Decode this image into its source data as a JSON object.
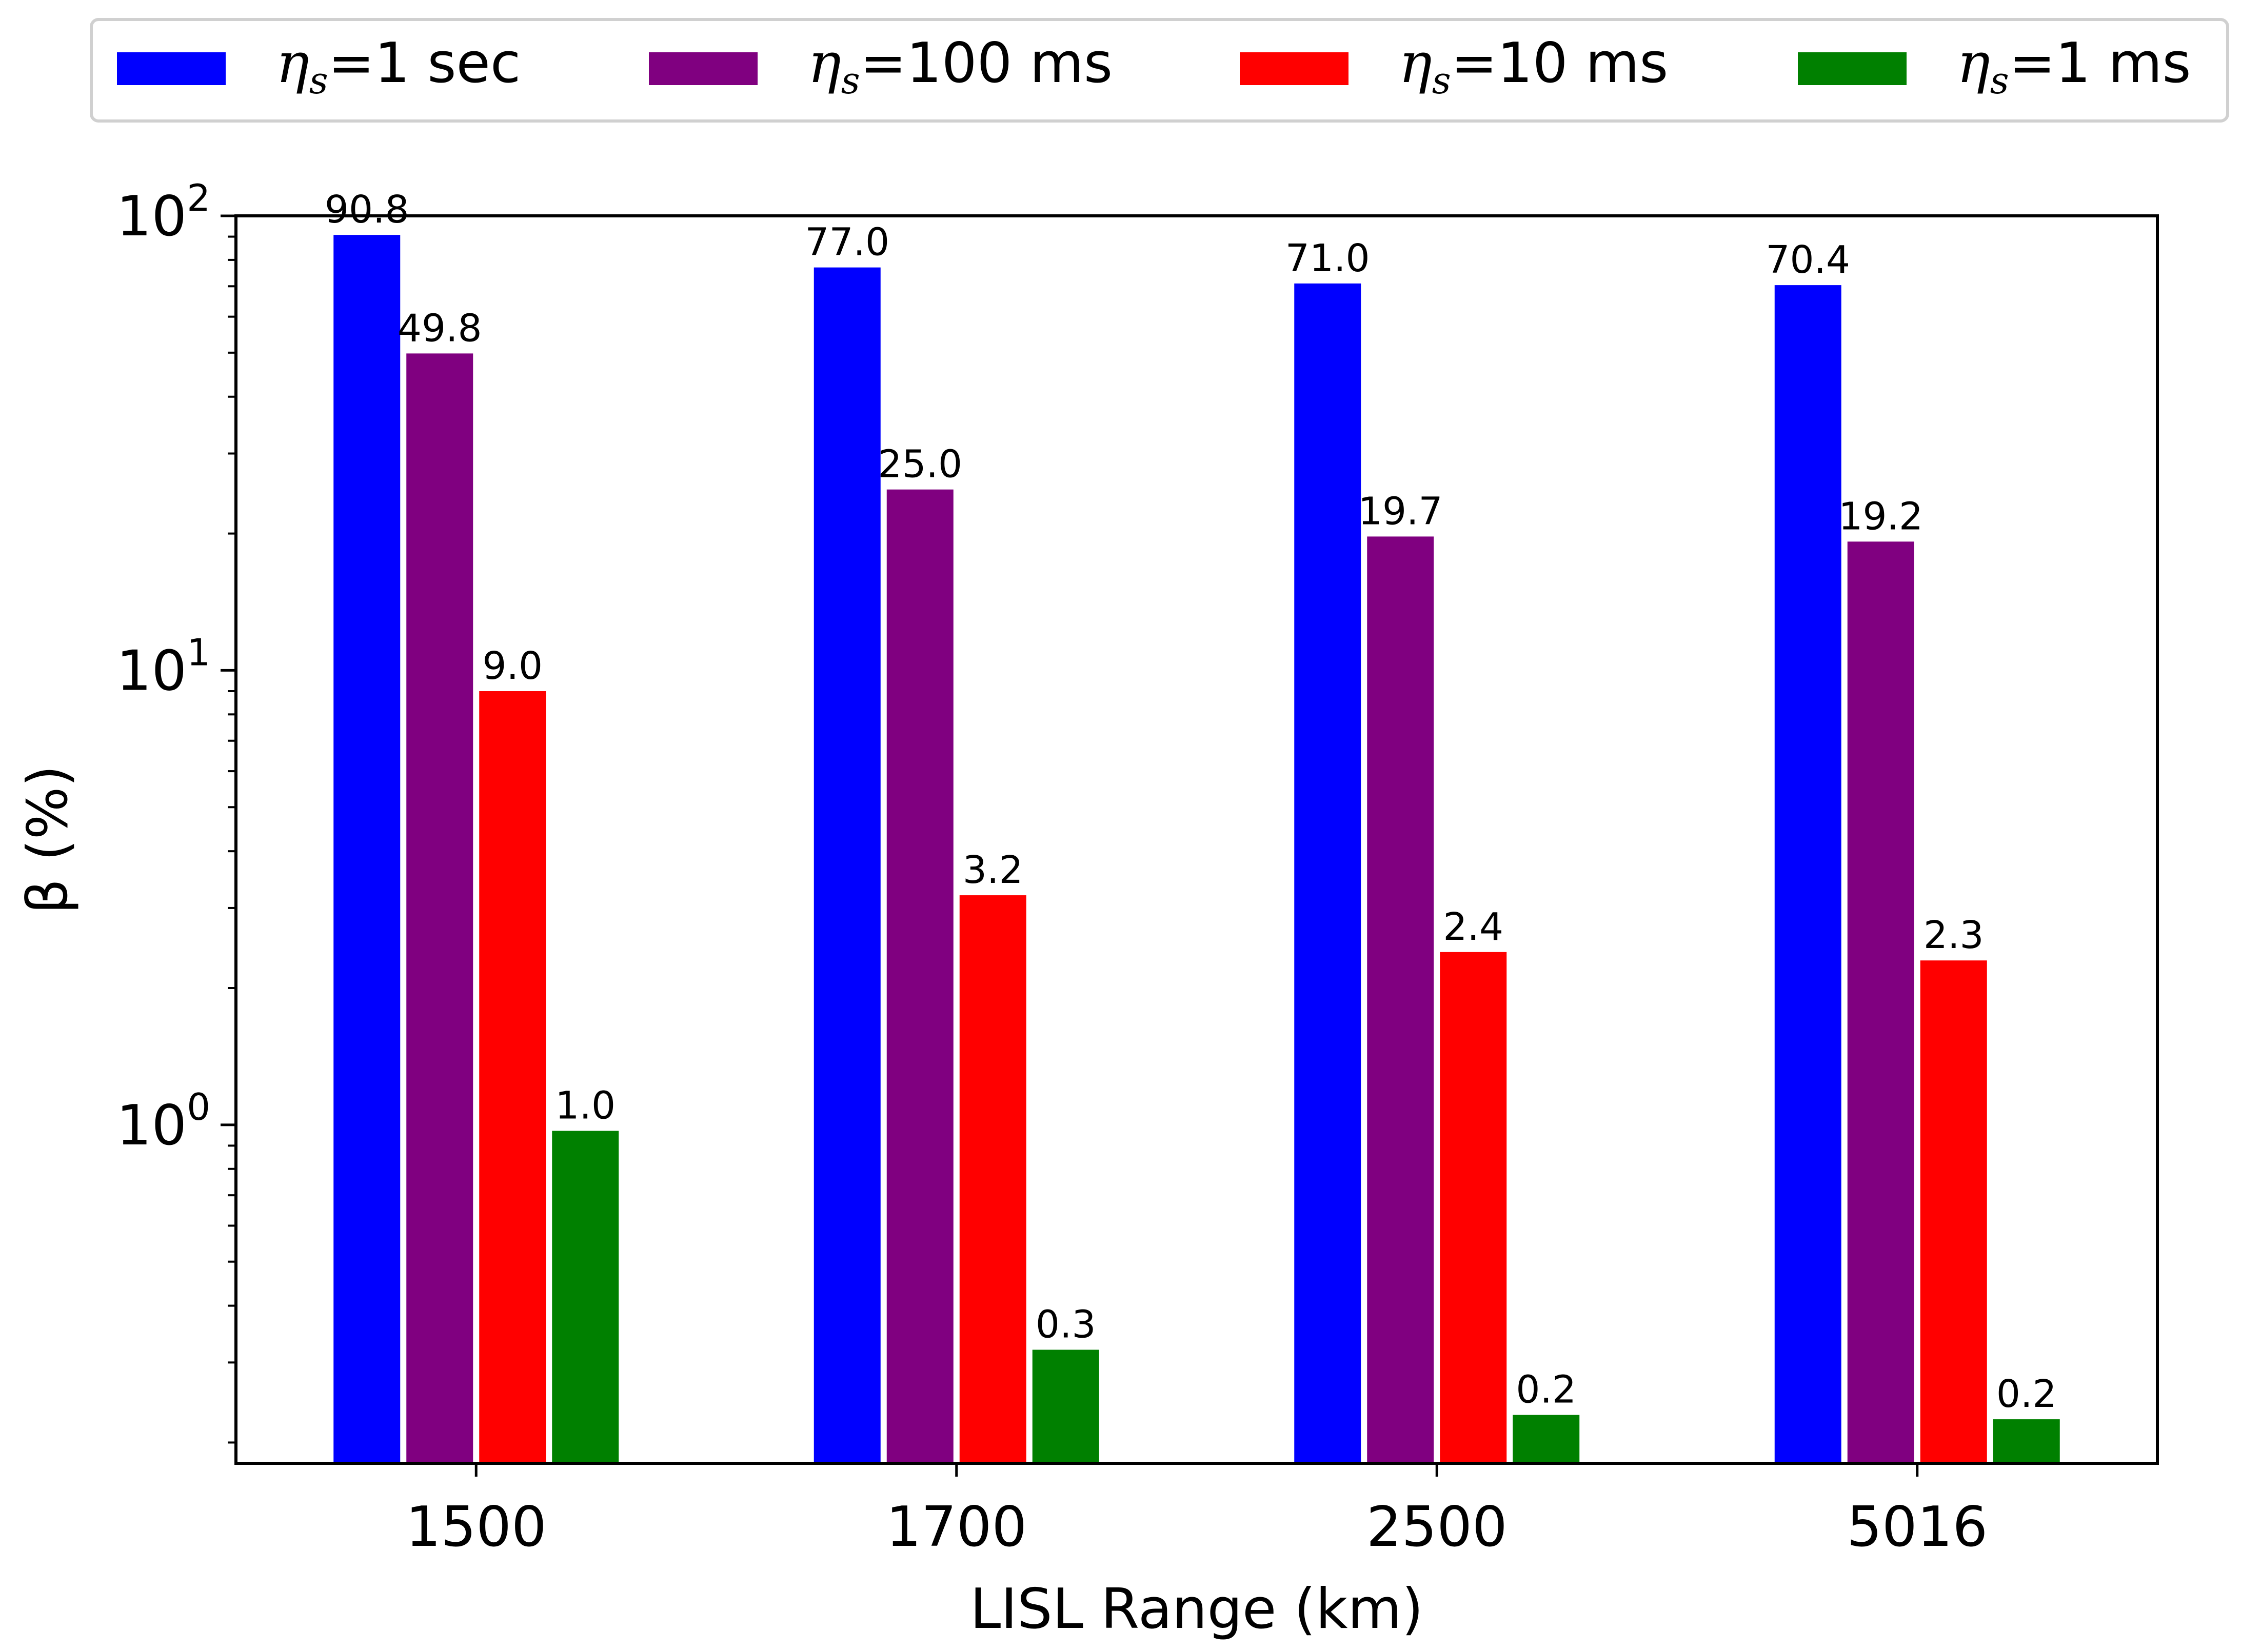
{
  "chart_data": {
    "type": "bar",
    "log_scale_y": true,
    "categories": [
      "1500",
      "1700",
      "2500",
      "5016"
    ],
    "xlabel": "LISL Range (km)",
    "ylabel": "β (%)",
    "ylim": [
      0.18,
      100
    ],
    "y_ticks": [
      {
        "value": 1,
        "base": "10",
        "exp": "0"
      },
      {
        "value": 10,
        "base": "10",
        "exp": "1"
      },
      {
        "value": 100,
        "base": "10",
        "exp": "2"
      }
    ],
    "legend_position": "top, outside plot",
    "grid": false,
    "series": [
      {
        "name": "ηs=1 sec",
        "sym": "η",
        "sub": "s",
        "rest": "=1 sec",
        "color": "#0000ff",
        "values": [
          90.8,
          77.0,
          71.0,
          70.4
        ],
        "labels": [
          "90.8",
          "77.0",
          "71.0",
          "70.4"
        ]
      },
      {
        "name": "ηs=100 ms",
        "sym": "η",
        "sub": "s",
        "rest": "=100 ms",
        "color": "#800080",
        "values": [
          49.8,
          25.0,
          19.7,
          19.2
        ],
        "labels": [
          "49.8",
          "25.0",
          "19.7",
          "19.2"
        ]
      },
      {
        "name": "ηs=10 ms",
        "sym": "η",
        "sub": "s",
        "rest": "=10 ms",
        "color": "#ff0000",
        "values": [
          9.0,
          3.2,
          2.4,
          2.3
        ],
        "labels": [
          "9.0",
          "3.2",
          "2.4",
          "2.3"
        ]
      },
      {
        "name": "ηs=1 ms",
        "sym": "η",
        "sub": "s",
        "rest": "=1 ms",
        "color": "#008000",
        "values": [
          0.97,
          0.32,
          0.23,
          0.225
        ],
        "labels": [
          "1.0",
          "0.3",
          "0.2",
          "0.2"
        ]
      }
    ]
  }
}
